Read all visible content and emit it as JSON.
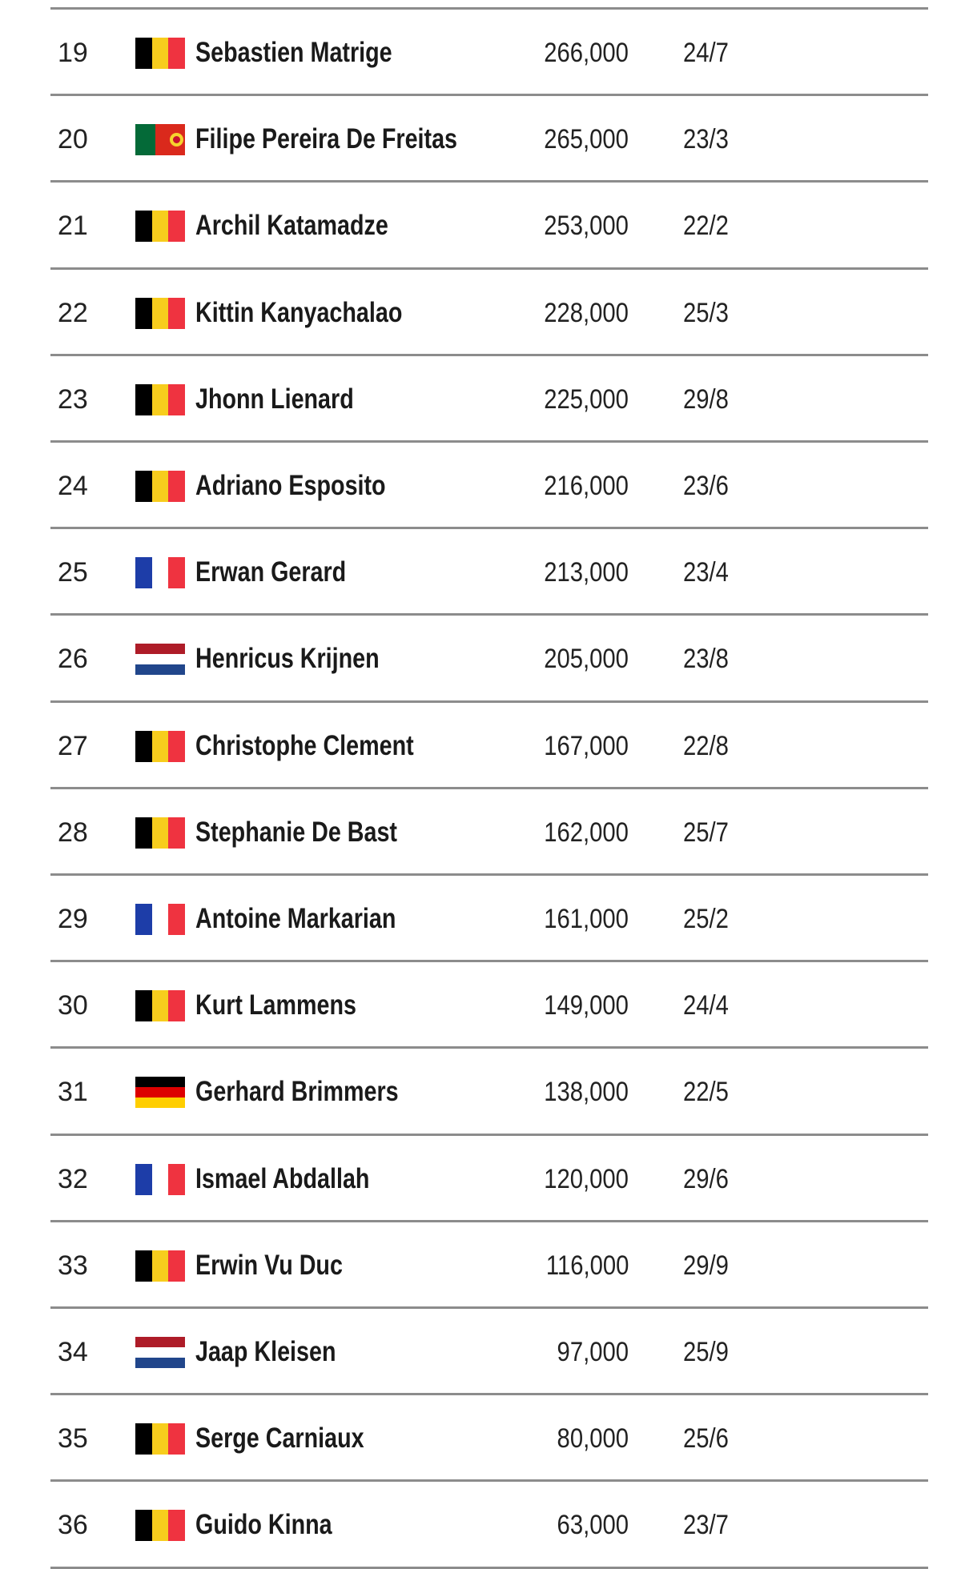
{
  "rows": [
    {
      "rank": "19",
      "flag": "BE",
      "name": "Sebastien Matrige",
      "points": "266,000",
      "date": "24/7"
    },
    {
      "rank": "20",
      "flag": "PT",
      "name": "Filipe Pereira De Freitas",
      "points": "265,000",
      "date": "23/3"
    },
    {
      "rank": "21",
      "flag": "BE",
      "name": "Archil Katamadze",
      "points": "253,000",
      "date": "22/2"
    },
    {
      "rank": "22",
      "flag": "BE",
      "name": "Kittin Kanyachalao",
      "points": "228,000",
      "date": "25/3"
    },
    {
      "rank": "23",
      "flag": "BE",
      "name": "Jhonn Lienard",
      "points": "225,000",
      "date": "29/8"
    },
    {
      "rank": "24",
      "flag": "BE",
      "name": "Adriano Esposito",
      "points": "216,000",
      "date": "23/6"
    },
    {
      "rank": "25",
      "flag": "FR",
      "name": "Erwan Gerard",
      "points": "213,000",
      "date": "23/4"
    },
    {
      "rank": "26",
      "flag": "NL",
      "name": "Henricus Krijnen",
      "points": "205,000",
      "date": "23/8"
    },
    {
      "rank": "27",
      "flag": "BE",
      "name": "Christophe Clement",
      "points": "167,000",
      "date": "22/8"
    },
    {
      "rank": "28",
      "flag": "BE",
      "name": "Stephanie De Bast",
      "points": "162,000",
      "date": "25/7"
    },
    {
      "rank": "29",
      "flag": "FR",
      "name": "Antoine Markarian",
      "points": "161,000",
      "date": "25/2"
    },
    {
      "rank": "30",
      "flag": "BE",
      "name": "Kurt Lammens",
      "points": "149,000",
      "date": "24/4"
    },
    {
      "rank": "31",
      "flag": "DE",
      "name": "Gerhard Brimmers",
      "points": "138,000",
      "date": "22/5"
    },
    {
      "rank": "32",
      "flag": "FR",
      "name": "Ismael Abdallah",
      "points": "120,000",
      "date": "29/6"
    },
    {
      "rank": "33",
      "flag": "BE",
      "name": "Erwin Vu Duc",
      "points": "116,000",
      "date": "29/9"
    },
    {
      "rank": "34",
      "flag": "NL",
      "name": "Jaap Kleisen",
      "points": "97,000",
      "date": "25/9"
    },
    {
      "rank": "35",
      "flag": "BE",
      "name": "Serge Carniaux",
      "points": "80,000",
      "date": "25/6"
    },
    {
      "rank": "36",
      "flag": "BE",
      "name": "Guido Kinna",
      "points": "63,000",
      "date": "23/7"
    }
  ],
  "flags": {
    "BE": {
      "icon": "belgium-flag-icon",
      "orientation": "v",
      "colors": [
        "#000000",
        "#f7cd1d",
        "#ef3340"
      ]
    },
    "FR": {
      "icon": "france-flag-icon",
      "orientation": "v",
      "colors": [
        "#1d3da8",
        "#ffffff",
        "#ef3340"
      ]
    },
    "NL": {
      "icon": "netherlands-flag-icon",
      "orientation": "h",
      "colors": [
        "#ae1c28",
        "#ffffff",
        "#21468b"
      ]
    },
    "DE": {
      "icon": "germany-flag-icon",
      "orientation": "h",
      "colors": [
        "#000000",
        "#dd0000",
        "#ffce00"
      ]
    },
    "PT": {
      "icon": "portugal-flag-icon",
      "orientation": "pt",
      "colors": [
        "#046a38",
        "#da291c"
      ]
    }
  },
  "rule_color": "#8c8c8c"
}
